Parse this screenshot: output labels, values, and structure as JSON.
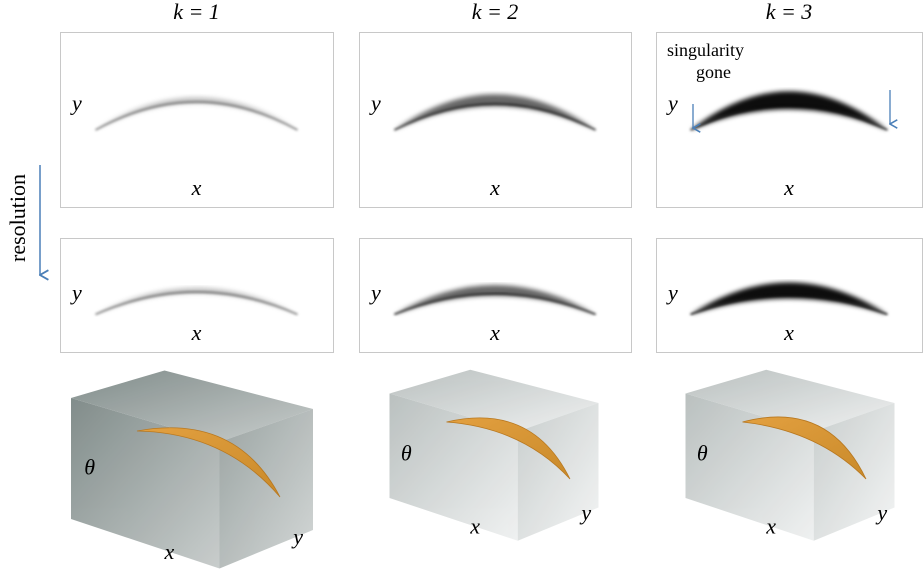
{
  "column_headers": [
    "k = 1",
    "k = 2",
    "k = 3"
  ],
  "row_label": "resolution",
  "annotation": [
    "singularity",
    "gone"
  ],
  "rows": [
    {
      "panels": [
        {
          "y_label": "y",
          "x_label": "x"
        },
        {
          "y_label": "y",
          "x_label": "x"
        },
        {
          "y_label": "y",
          "x_label": "x"
        }
      ]
    },
    {
      "panels": [
        {
          "y_label": "y",
          "x_label": "x"
        },
        {
          "y_label": "y",
          "x_label": "x"
        },
        {
          "y_label": "y",
          "x_label": "x"
        }
      ]
    },
    {
      "panels": [
        {
          "theta_label": "θ",
          "x_label": "x",
          "y_label": "y"
        },
        {
          "theta_label": "θ",
          "x_label": "x",
          "y_label": "y"
        },
        {
          "theta_label": "θ",
          "x_label": "x",
          "y_label": "y"
        }
      ]
    }
  ]
}
